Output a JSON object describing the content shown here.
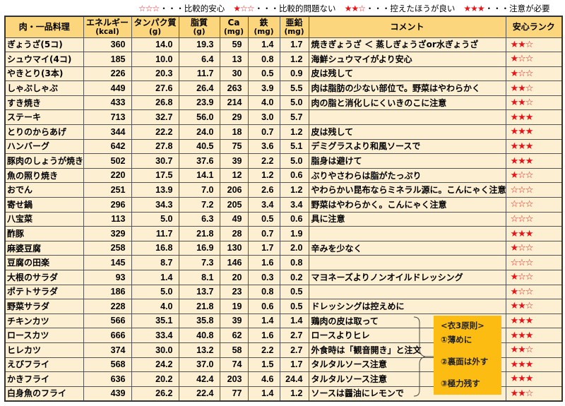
{
  "legend": [
    {
      "stars": "☆☆☆",
      "label": "・・・比較的安心"
    },
    {
      "stars": "★☆☆",
      "label": "・・・比較的問題ない"
    },
    {
      "stars": "★★☆",
      "label": "・・・控えたほうが良い"
    },
    {
      "stars": "★★★",
      "label": "・・・注意が必要"
    }
  ],
  "headers": {
    "name": "肉・一品料理",
    "energy": {
      "label": "エネルギー",
      "unit": "(kcal)"
    },
    "protein": {
      "label": "タンパク質",
      "unit": "(g)"
    },
    "fat": {
      "label": "脂質",
      "unit": "(g)"
    },
    "ca": {
      "label": "Ca",
      "unit": "(mg)"
    },
    "fe": {
      "label": "鉄",
      "unit": "(mg)"
    },
    "zn": {
      "label": "亜鉛",
      "unit": "(mg)"
    },
    "comment": "コメント",
    "rank": "安心ランク"
  },
  "rows": [
    {
      "name": "ぎょうざ(5コ)",
      "energy": "360",
      "protein": "14.0",
      "fat": "19.3",
      "ca": "59",
      "fe": "1.4",
      "zn": "1.7",
      "comment": "焼きぎょうざ ＜ 蒸しぎょうざor水ぎょうざ",
      "rank": "★★☆"
    },
    {
      "name": "シュウマイ(4コ)",
      "energy": "185",
      "protein": "10.0",
      "fat": "6.4",
      "ca": "13",
      "fe": "0.8",
      "zn": "1.2",
      "comment": "海鮮シュウマイがより安心",
      "rank": "★☆☆"
    },
    {
      "name": "やきとり(3本)",
      "energy": "226",
      "protein": "20.3",
      "fat": "11.7",
      "ca": "30",
      "fe": "0.5",
      "zn": "0.9",
      "comment": "皮は残して",
      "rank": "★☆☆"
    },
    {
      "name": "しゃぶしゃぶ",
      "energy": "449",
      "protein": "27.6",
      "fat": "26.4",
      "ca": "263",
      "fe": "3.9",
      "zn": "5.5",
      "comment": "肉は脂肪の少ない部位で。野菜はやわらかく",
      "rank": "★★☆"
    },
    {
      "name": "すき焼き",
      "energy": "433",
      "protein": "26.8",
      "fat": "23.9",
      "ca": "214",
      "fe": "4.0",
      "zn": "5.0",
      "comment": "肉の脂と消化しにくいきのこに注意",
      "rank": "★★☆"
    },
    {
      "name": "ステーキ",
      "energy": "713",
      "protein": "32.7",
      "fat": "56.0",
      "ca": "29",
      "fe": "3.0",
      "zn": "5.7",
      "comment": "",
      "rank": "★★★"
    },
    {
      "name": "とりのからあげ",
      "energy": "344",
      "protein": "22.2",
      "fat": "24.0",
      "ca": "18",
      "fe": "0.7",
      "zn": "1.2",
      "comment": "皮は残して",
      "rank": "★★★"
    },
    {
      "name": "ハンバーグ",
      "energy": "642",
      "protein": "27.8",
      "fat": "40.5",
      "ca": "75",
      "fe": "3.6",
      "zn": "5.1",
      "comment": "デミグラスより和風ソースで",
      "rank": "★★★"
    },
    {
      "name": "豚肉のしょうが焼き",
      "energy": "502",
      "protein": "30.7",
      "fat": "37.6",
      "ca": "39",
      "fe": "2.2",
      "zn": "5.0",
      "comment": "脂身は避けて",
      "rank": "★★★"
    },
    {
      "name": "魚の照り焼き",
      "energy": "220",
      "protein": "17.5",
      "fat": "14.1",
      "ca": "12",
      "fe": "1.2",
      "zn": "0.6",
      "comment": "ぶりやさわらは脂がたっぷり",
      "rank": "★☆☆"
    },
    {
      "name": "おでん",
      "energy": "251",
      "protein": "13.9",
      "fat": "7.0",
      "ca": "206",
      "fe": "2.6",
      "zn": "1.2",
      "comment": "やわらかい昆布ならミネラル源に。こんにゃく注意",
      "rank": "☆☆☆"
    },
    {
      "name": "寄せ鍋",
      "energy": "296",
      "protein": "34.3",
      "fat": "7.2",
      "ca": "205",
      "fe": "3.4",
      "zn": "3.4",
      "comment": "野菜はやわらかく。こんにゃく注意",
      "rank": "☆☆☆"
    },
    {
      "name": "八宝菜",
      "energy": "113",
      "protein": "5.0",
      "fat": "6.3",
      "ca": "49",
      "fe": "0.5",
      "zn": "0.6",
      "comment": "具に注意",
      "rank": "☆☆☆"
    },
    {
      "name": "酢豚",
      "energy": "329",
      "protein": "11.7",
      "fat": "21.8",
      "ca": "28",
      "fe": "0.7",
      "zn": "1.9",
      "comment": "",
      "rank": "★★★"
    },
    {
      "name": "麻婆豆腐",
      "energy": "258",
      "protein": "16.8",
      "fat": "16.9",
      "ca": "130",
      "fe": "1.7",
      "zn": "2.0",
      "comment": "辛みを少なく",
      "rank": "★☆☆"
    },
    {
      "name": "豆腐の田楽",
      "energy": "145",
      "protein": "8.7",
      "fat": "7.3",
      "ca": "146",
      "fe": "1.6",
      "zn": "0.8",
      "comment": "",
      "rank": "☆☆☆"
    },
    {
      "name": "大根のサラダ",
      "energy": "93",
      "protein": "1.4",
      "fat": "8.1",
      "ca": "20",
      "fe": "0.3",
      "zn": "0.2",
      "comment": "マヨネーズよりノンオイルドレッシング",
      "rank": "★☆☆"
    },
    {
      "name": "ポテトサラダ",
      "energy": "186",
      "protein": "5.0",
      "fat": "13.7",
      "ca": "23",
      "fe": "0.8",
      "zn": "0.5",
      "comment": "",
      "rank": "★☆☆"
    },
    {
      "name": "野菜サラダ",
      "energy": "228",
      "protein": "4.0",
      "fat": "21.8",
      "ca": "19",
      "fe": "0.6",
      "zn": "0.5",
      "comment": "ドレッシングは控えめに",
      "rank": "★★☆"
    },
    {
      "name": "チキンカツ",
      "energy": "566",
      "protein": "35.1",
      "fat": "35.8",
      "ca": "39",
      "fe": "1.4",
      "zn": "1.4",
      "comment": "鶏肉の皮は取って",
      "rank": "★★★"
    },
    {
      "name": "ロースカツ",
      "energy": "666",
      "protein": "33.4",
      "fat": "40.8",
      "ca": "62",
      "fe": "1.6",
      "zn": "2.7",
      "comment": "ロースよりヒレ",
      "rank": "★★★"
    },
    {
      "name": "ヒレカツ",
      "energy": "374",
      "protein": "30.0",
      "fat": "13.2",
      "ca": "58",
      "fe": "2.2",
      "zn": "2.7",
      "comment": "外食時は「観音開き」と注文",
      "rank": "★★☆"
    },
    {
      "name": "えびフライ",
      "energy": "568",
      "protein": "24.2",
      "fat": "37.0",
      "ca": "74",
      "fe": "1.5",
      "zn": "1.7",
      "comment": "タルタルソース注意",
      "rank": "★★★"
    },
    {
      "name": "かきフライ",
      "energy": "636",
      "protein": "20.2",
      "fat": "42.4",
      "ca": "203",
      "fe": "4.6",
      "zn": "24.4",
      "comment": "タルタルソース注意",
      "rank": "★★★"
    },
    {
      "name": "白身魚のフライ",
      "energy": "439",
      "protein": "26.2",
      "fat": "22.4",
      "ca": "77",
      "fe": "1.4",
      "zn": "1.2",
      "comment": "ソースは醤油にレモンで",
      "rank": "★★☆"
    }
  ],
  "principles": {
    "title": "<衣3原則>",
    "items": [
      "①薄めに",
      "②裏面は外す",
      "③極力残す"
    ]
  },
  "colors": {
    "header_bg": "#fbd67c",
    "row_bg": "#fdf0d2",
    "star": "#e8141a",
    "principles_bg": "#fcbc12"
  }
}
